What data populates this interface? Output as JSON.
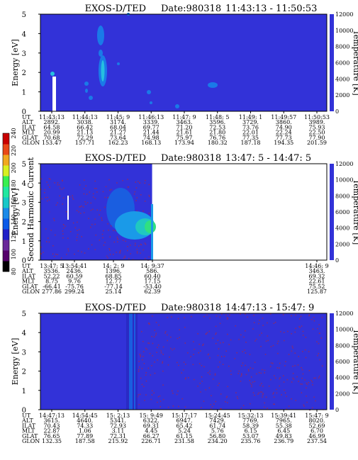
{
  "colors": {
    "background": "#3232d8",
    "background_dark": "#2a2ac4",
    "speckle": "#8a2a6a",
    "cbar": [
      "#000000",
      "#55006a",
      "#6a2a9a",
      "#2020c8",
      "#0a5ae8",
      "#1a8ae8",
      "#18c8c8",
      "#20e8a0",
      "#38f050",
      "#d8f020",
      "#f0a820",
      "#e84818",
      "#c80000"
    ]
  },
  "chart_data": [
    {
      "type": "heatmap",
      "title": "EXOS-D/TED",
      "date_label": "Date:980318",
      "time_range": "11:43:13 - 11:50:53",
      "ylabel": "Energy [eV]",
      "ylabel_right": "Temperature [K]",
      "ylim": [
        0,
        5
      ],
      "yticks": [
        "0",
        "1",
        "2",
        "3",
        "4",
        "5"
      ],
      "ylim_right": [
        0,
        12000
      ],
      "yticks_right": [
        "0",
        "2000",
        "4000",
        "6000",
        "8000",
        "10000",
        "12000"
      ],
      "fill": 1.0,
      "footer_labels": [
        "UT",
        "ALT",
        "ILAT",
        "MLT",
        "GLAT",
        "GLON"
      ],
      "footer_columns": [
        [
          "11:43:13",
          "2892.",
          "64.58",
          "20.99",
          "70.68",
          "153.47"
        ],
        [
          "11:44:13",
          "3038.",
          "66.42",
          "21.13",
          "72.29",
          "157.71"
        ],
        [
          "11:45: 9",
          "3174.",
          "68.04",
          "21.27",
          "73.64",
          "162.23"
        ],
        [
          "11:46:13",
          "3339.",
          "69.77",
          "21.44",
          "74.98",
          "168.13"
        ],
        [
          "11:47: 9",
          "3463.",
          "71.20",
          "21.61",
          "75.97",
          "173.94"
        ],
        [
          "11:48: 5",
          "3596.",
          "72.53",
          "21.80",
          "76.76",
          "180.32"
        ],
        [
          "11:49: 1",
          "3729.",
          "73.76",
          "22.01",
          "77.35",
          "187.18"
        ],
        [
          "11:49:57",
          "3860.",
          "74.90",
          "22.24",
          "77.73",
          "194.35"
        ],
        [
          "11:50:53",
          "3989.",
          "75.93",
          "22.50",
          "77.90",
          "201.59"
        ]
      ]
    },
    {
      "type": "heatmap",
      "title": "EXOS-D/TED",
      "date_label": "Date:980318",
      "time_range": "13:47: 5 - 14:47: 5",
      "ylabel": "Energy [eV]",
      "ylabel_right": "Temperature [K]",
      "ylim": [
        0,
        5
      ],
      "yticks": [
        "0",
        "1",
        "2",
        "3",
        "4",
        "5"
      ],
      "ylim_right": [
        0,
        12000
      ],
      "yticks_right": [
        "0",
        "2000",
        "4000",
        "6000",
        "8000",
        "10000",
        "12000"
      ],
      "fill": 0.39,
      "footer_labels": [
        "UT",
        "ALT",
        "ILAT",
        "MLT",
        "GLAT",
        "GLON"
      ],
      "footer_columns": [
        [
          "13:47: 5",
          "3536.",
          "52.22",
          "8.75",
          "-66.41",
          "277.86"
        ],
        [
          "13:54:41",
          "2436.",
          "60.59",
          "9.76",
          "-75.76",
          "299.24"
        ],
        [
          "14: 2: 9",
          "1396.",
          "68.85",
          "12.77",
          "-77.14",
          "25.14"
        ],
        [
          "14: 9:37",
          "586.",
          "60.40",
          "17.15",
          "-53.40",
          "62.39"
        ],
        [
          "14:46: 9",
          "3463.",
          "69.32",
          "22.61",
          "75.52",
          "125.87"
        ]
      ]
    },
    {
      "type": "heatmap",
      "title": "EXOS-D/TED",
      "date_label": "Date:980318",
      "time_range": "14:47:13 - 15:47: 9",
      "ylabel": "Energy [eV]",
      "ylabel_right": "Temperature [K]",
      "ylim": [
        0,
        5
      ],
      "yticks": [
        "0",
        "1",
        "2",
        "3",
        "4",
        "5"
      ],
      "ylim_right": [
        0,
        12000
      ],
      "yticks_right": [
        "0",
        "2000",
        "4000",
        "6000",
        "8000",
        "10000",
        "12000"
      ],
      "fill": 1.0,
      "footer_labels": [
        "UT",
        "ALT",
        "ILAT",
        "MLT",
        "GLAT",
        "GLON"
      ],
      "footer_columns": [
        [
          "14:47:13",
          "3615.",
          "70.43",
          "22.87",
          "76.65",
          "132.35"
        ],
        [
          "14:54:45",
          "4640.",
          "74.33",
          "1.06",
          "77.89",
          "187.58"
        ],
        [
          "15: 2:13",
          "5341.",
          "72.93",
          "3.11",
          "72.31",
          "215.92"
        ],
        [
          "15: 9:49",
          "6322.",
          "69.31",
          "4.45",
          "66.27",
          "226.71"
        ],
        [
          "15:17:17",
          "6947.",
          "65.42",
          "5.24",
          "61.15",
          "231.58"
        ],
        [
          "15:24:45",
          "7429.",
          "61.74",
          "5.76",
          "56.80",
          "234.20"
        ],
        [
          "15:32:13",
          "7769.",
          "58.39",
          "6.15",
          "53.07",
          "235.76"
        ],
        [
          "15:39:41",
          "7965.",
          "55.38",
          "6.45",
          "49.83",
          "236.79"
        ],
        [
          "15:47: 9",
          "8020.",
          "52.69",
          "6.70",
          "46.99",
          "237.54"
        ]
      ]
    }
  ],
  "colorbar": {
    "label": "Second Harmonic Current",
    "ticks": [
      "80",
      "100",
      "120",
      "140",
      "160",
      "180",
      "200",
      "220",
      "240"
    ]
  }
}
